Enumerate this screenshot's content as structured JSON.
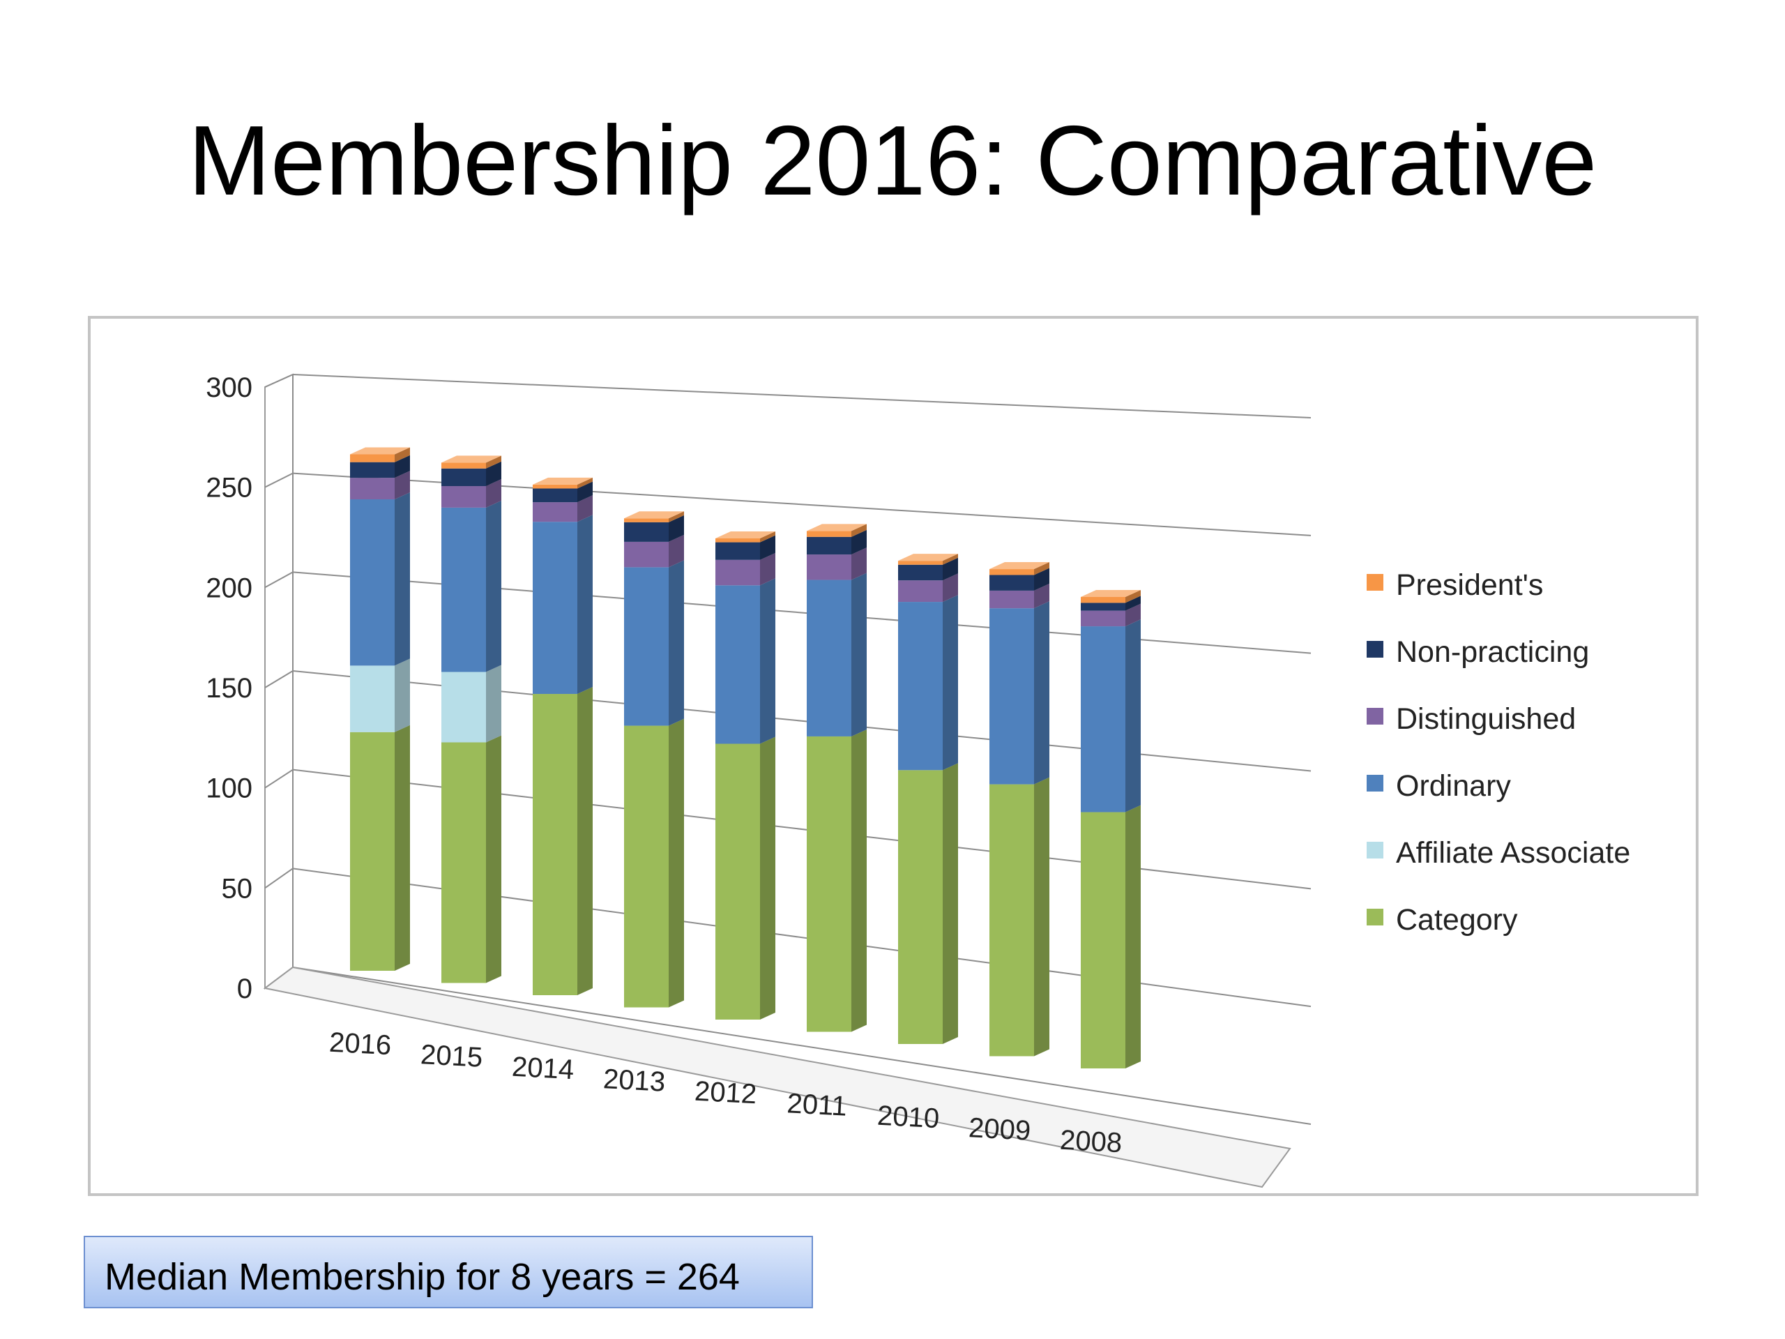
{
  "slide": {
    "title": "Membership 2016: Comparative",
    "note": "Median Membership for 8 years = 264"
  },
  "chart_data": {
    "type": "bar",
    "stacked": true,
    "style": "3d-column",
    "categories": [
      "2016",
      "2015",
      "2014",
      "2013",
      "2012",
      "2011",
      "2010",
      "2009",
      "2008"
    ],
    "series": [
      {
        "name": "Category",
        "color": "#9bbb59",
        "values": [
          122,
          123,
          154,
          144,
          141,
          151,
          140,
          139,
          131
        ]
      },
      {
        "name": "Affiliate Associate",
        "color": "#b7dee8",
        "values": [
          34,
          36,
          0,
          0,
          0,
          0,
          0,
          0,
          0
        ]
      },
      {
        "name": "Ordinary",
        "color": "#4f81bd",
        "values": [
          85,
          84,
          88,
          81,
          81,
          80,
          86,
          90,
          95
        ]
      },
      {
        "name": "Distinguished",
        "color": "#8064a2",
        "values": [
          11,
          11,
          10,
          13,
          13,
          13,
          11,
          9,
          8
        ]
      },
      {
        "name": "Non-practicing",
        "color": "#1f3864",
        "values": [
          8,
          9,
          7,
          10,
          9,
          9,
          8,
          8,
          4
        ]
      },
      {
        "name": "President's",
        "color": "#f79646",
        "values": [
          4,
          3,
          2,
          2,
          2,
          3,
          2,
          3,
          3
        ]
      }
    ],
    "y_ticks": [
      "0",
      "50",
      "100",
      "150",
      "200",
      "250",
      "300"
    ],
    "ylim": [
      0,
      300
    ],
    "grid": true,
    "legend_position": "right",
    "legend_order": [
      "President's",
      "Non-practicing",
      "Distinguished",
      "Ordinary",
      "Affiliate Associate",
      "Category"
    ]
  }
}
